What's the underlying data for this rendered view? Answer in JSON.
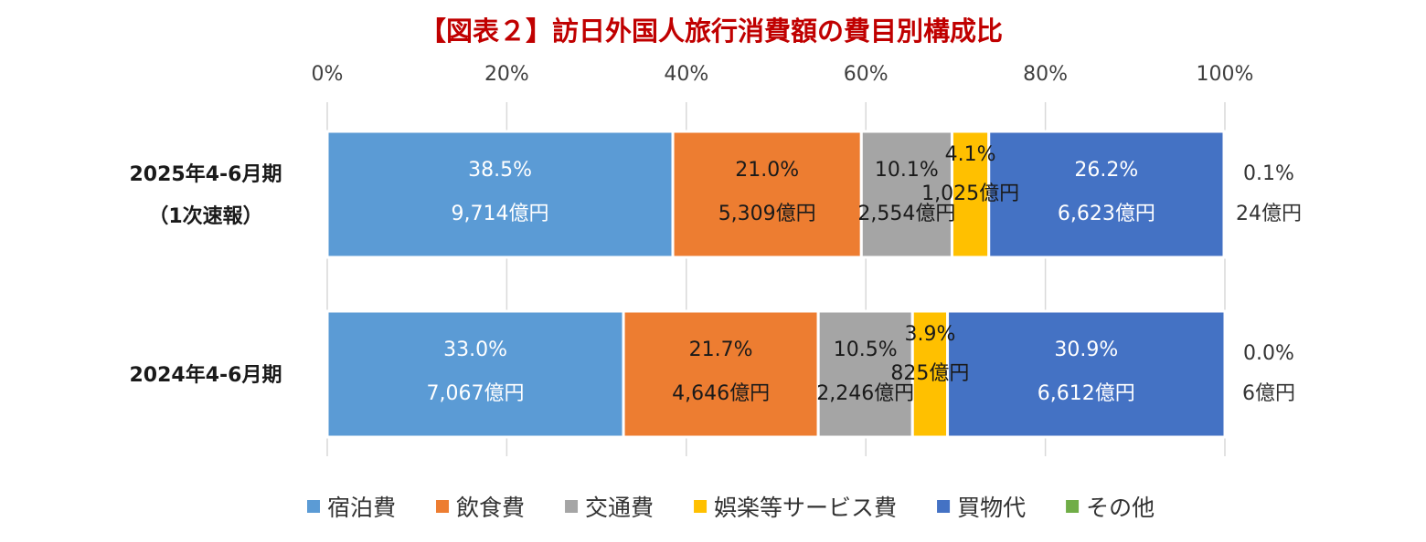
{
  "chart_data": {
    "type": "bar",
    "orientation": "horizontal",
    "stacked": "percent",
    "title": "【図表２】訪日外国人旅行消費額の費目別構成比",
    "xlim": [
      0,
      100
    ],
    "x_ticks": [
      "0%",
      "20%",
      "40%",
      "60%",
      "80%",
      "100%"
    ],
    "tick_values": [
      0,
      20,
      40,
      60,
      80,
      100
    ],
    "grid": true,
    "legend_position": "bottom",
    "categories": [
      [
        "2025年4-6月期",
        "（1次速報）"
      ],
      [
        "2024年4-6月期"
      ]
    ],
    "series": [
      {
        "name": "宿泊費",
        "color": "#5b9bd5",
        "label_color": "#ffffff",
        "values": [
          38.5,
          33.0
        ],
        "pct_labels": [
          "38.5%",
          "33.0%"
        ],
        "amount_labels": [
          "9,714億円",
          "7,067億円"
        ]
      },
      {
        "name": "飲食費",
        "color": "#ed7d31",
        "label_color": "#1a1a1a",
        "values": [
          21.0,
          21.7
        ],
        "pct_labels": [
          "21.0%",
          "21.7%"
        ],
        "amount_labels": [
          "5,309億円",
          "4,646億円"
        ]
      },
      {
        "name": "交通費",
        "color": "#a5a5a5",
        "label_color": "#1a1a1a",
        "values": [
          10.1,
          10.5
        ],
        "pct_labels": [
          "10.1%",
          "10.5%"
        ],
        "amount_labels": [
          "2,554億円",
          "2,246億円"
        ]
      },
      {
        "name": "娯楽等サービス費",
        "color": "#ffc000",
        "label_color": "#1a1a1a",
        "values": [
          4.1,
          3.9
        ],
        "pct_labels": [
          "4.1%",
          "3.9%"
        ],
        "amount_labels": [
          "1,025億円",
          "825億円"
        ]
      },
      {
        "name": "買物代",
        "color": "#4472c4",
        "label_color": "#ffffff",
        "values": [
          26.2,
          30.9
        ],
        "pct_labels": [
          "26.2%",
          "30.9%"
        ],
        "amount_labels": [
          "6,623億円",
          "6,612億円"
        ]
      },
      {
        "name": "その他",
        "color": "#70ad47",
        "label_color": "#333333",
        "values": [
          0.1,
          0.0
        ],
        "pct_labels": [
          "0.1%",
          "0.0%"
        ],
        "amount_labels": [
          "24億円",
          "6億円"
        ]
      }
    ]
  }
}
